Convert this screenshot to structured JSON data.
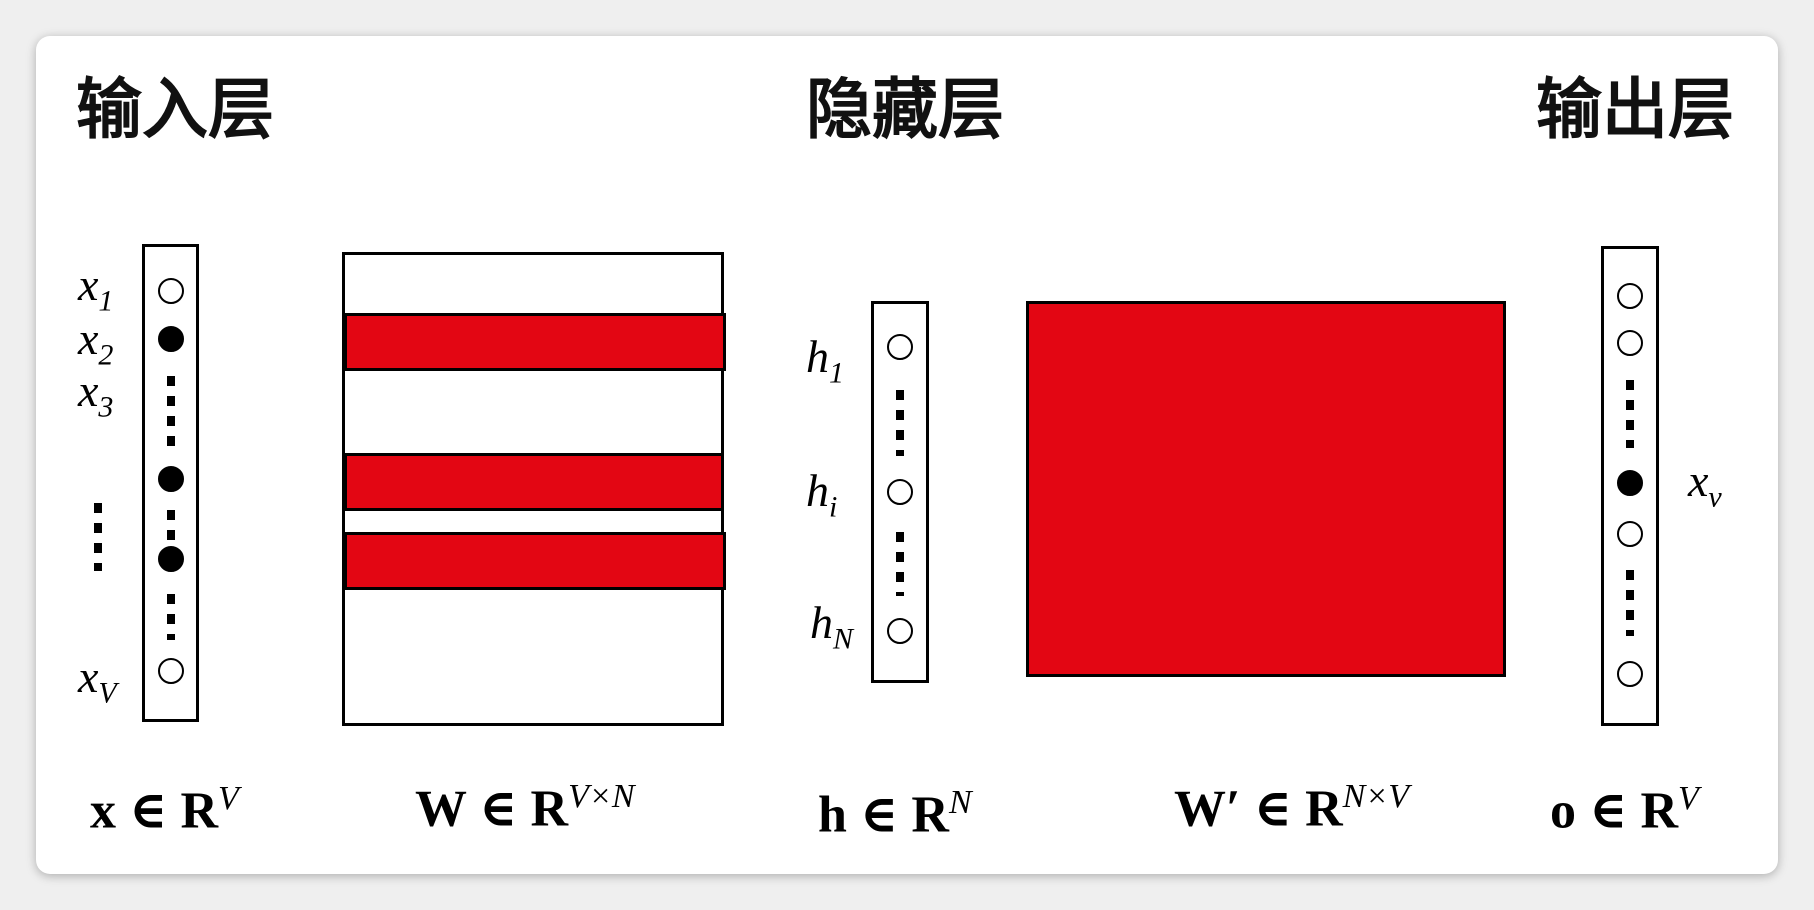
{
  "layers": {
    "input": "输入层",
    "hidden": "隐藏层",
    "output": "输出层"
  },
  "input_labels": {
    "x": "x",
    "s1": "1",
    "s2": "2",
    "s3": "3",
    "sV": "V"
  },
  "hidden_labels": {
    "h": "h",
    "s1": "1",
    "si": "i",
    "sN": "N"
  },
  "output_labels": {
    "x": "x",
    "sv": "v"
  },
  "equations": {
    "x": {
      "base": "x ∈ R",
      "sup": "V"
    },
    "W": {
      "base": "W ∈ R",
      "sup": "V×N"
    },
    "h": {
      "base": "h ∈ R",
      "sup": "N"
    },
    "Wp": {
      "base": "W′ ∈ R",
      "sup": "N×V"
    },
    "o": {
      "base": "o ∈ R",
      "sup": "V"
    }
  },
  "colors": {
    "highlight": "#e30613",
    "stroke": "#000000",
    "background": "#ffffff"
  }
}
